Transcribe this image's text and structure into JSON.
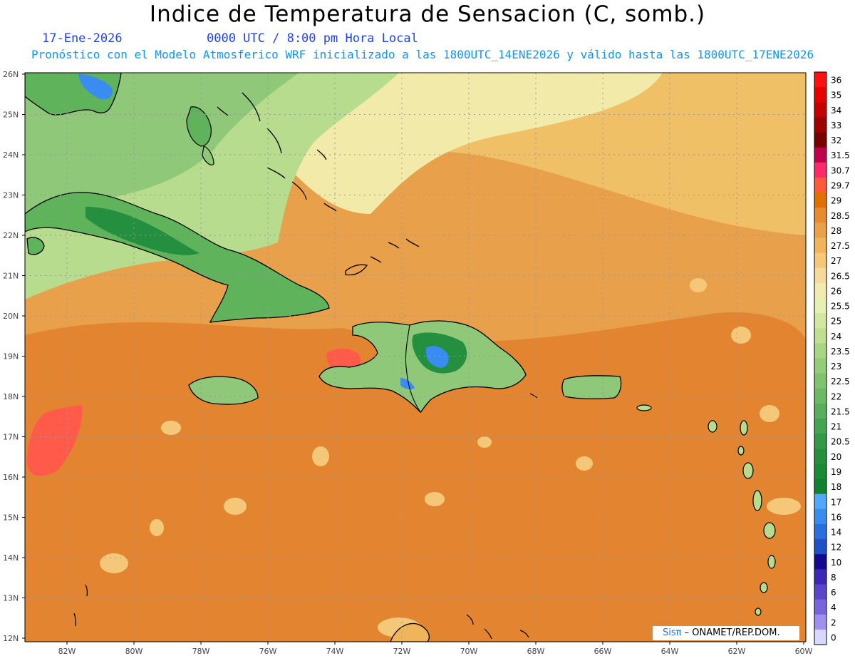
{
  "title": "Indice de Temperatura de Sensacion (C, somb.)",
  "date_label": "17-Ene-2026",
  "time_label": "0000 UTC / 8:00 pm Hora Local",
  "forecast_text": "Pronóstico con el Modelo Atmosferico WRF inicializado a las 1800UTC_14ENE2026 y válido hasta las  1800UTC_17ENE2026",
  "credit": {
    "brand": "Sisπ",
    "text": "– ONAMET/REP.DOM."
  },
  "map": {
    "lat_labels": [
      "26N",
      "25N",
      "24N",
      "23N",
      "22N",
      "21N",
      "20N",
      "19N",
      "18N",
      "17N",
      "16N",
      "15N",
      "14N",
      "13N",
      "12N"
    ],
    "lon_labels": [
      "82W",
      "80W",
      "78W",
      "76W",
      "74W",
      "72W",
      "70W",
      "68W",
      "66W",
      "64W",
      "62W",
      "60W"
    ],
    "colors": {
      "ocean_warm": "#e9a04a",
      "ocean_hot": "#e07f2c",
      "ocean_mild": "#f0c067",
      "land_green": "#5fb35a",
      "land_light": "#b8dc8e",
      "land_dark": "#248f3e",
      "cool_band": "#f2eaa8",
      "hot_spot": "#ff5a4a",
      "coast": "#000000"
    }
  },
  "colorbar": {
    "labels": [
      "36",
      "35",
      "34",
      "33",
      "32",
      "31.5",
      "30.7",
      "29.7",
      "29",
      "28.5",
      "28",
      "27.5",
      "27",
      "26.5",
      "26",
      "25.5",
      "25",
      "24",
      "23.5",
      "23",
      "22.5",
      "22",
      "21.5",
      "21",
      "20.5",
      "20",
      "19",
      "18",
      "17",
      "16",
      "14",
      "12",
      "10",
      "8",
      "6",
      "4",
      "2",
      "0"
    ],
    "colors": [
      "#ff1010",
      "#e80000",
      "#c40000",
      "#9e0000",
      "#780000",
      "#c0004a",
      "#ff2a6a",
      "#ff5a3a",
      "#e07000",
      "#e88a2e",
      "#eba04a",
      "#f0b45a",
      "#f4c878",
      "#f6da9a",
      "#f2eab0",
      "#e6f0b0",
      "#d2e8a0",
      "#bfe090",
      "#a8d684",
      "#94cc7a",
      "#80c270",
      "#6cb866",
      "#58ae5c",
      "#44a452",
      "#309a48",
      "#24903e",
      "#1a8a36",
      "#128030",
      "#50a8ff",
      "#3a8cf0",
      "#2a6ee0",
      "#1e50c8",
      "#140a8c",
      "#3c28b4",
      "#5a46c8",
      "#7a64dc",
      "#a08ef0",
      "#d8d8ff"
    ]
  }
}
